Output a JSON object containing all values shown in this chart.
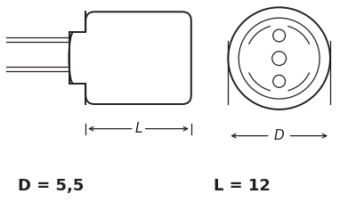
{
  "bg_color": "#ffffff",
  "line_color": "#231f20",
  "text_color": "#231f20",
  "label_D": "D = 5,5",
  "label_L": "L = 12",
  "label_fontsize": 13,
  "dim_label_L": "L",
  "dim_label_D": "D",
  "lw_main": 1.4,
  "lw_thin": 0.9
}
